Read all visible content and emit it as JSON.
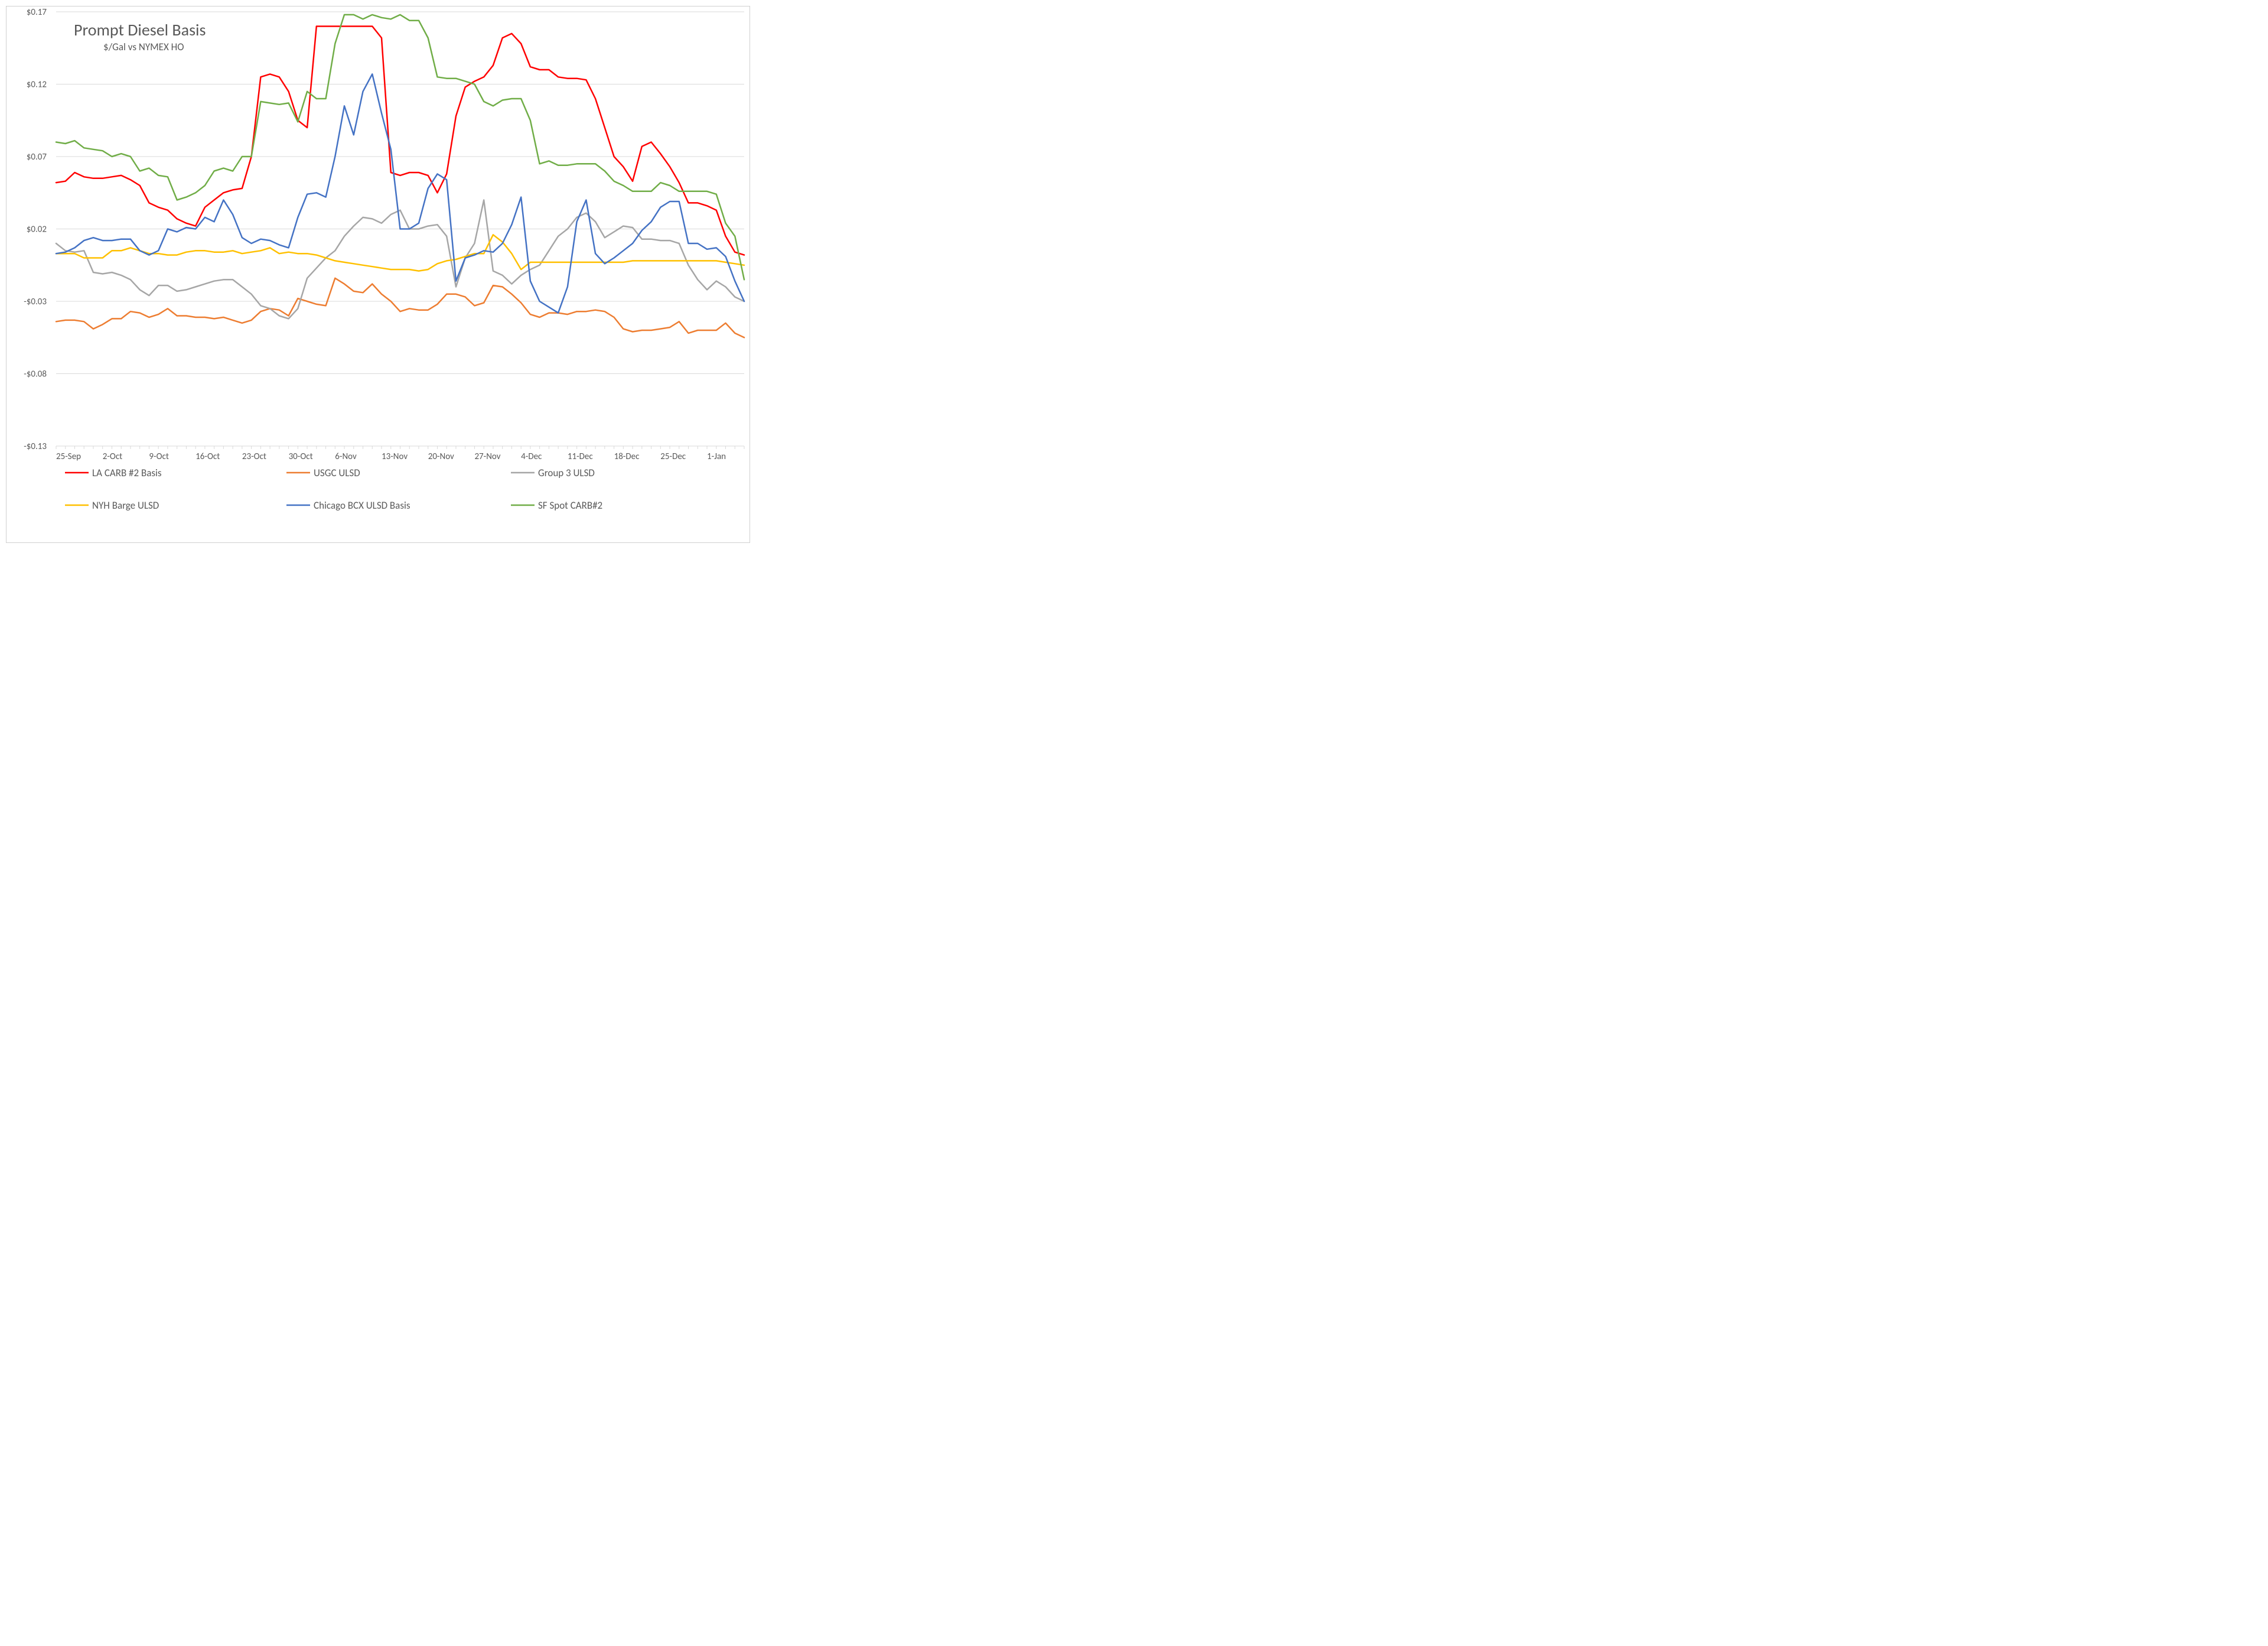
{
  "chart": {
    "type": "line",
    "title": "Prompt Diesel Basis",
    "subtitle": "$/Gal vs NYMEX HO",
    "title_fontsize": 28,
    "subtitle_fontsize": 17,
    "title_color": "#595959",
    "axis_label_fontsize": 15,
    "legend_fontsize": 17,
    "background_color": "#ffffff",
    "gridline_color": "#d9d9d9",
    "border_color": "#d0d0d0",
    "line_width": 2.5,
    "y_axis": {
      "min": -0.13,
      "max": 0.17,
      "ticks": [
        -0.13,
        -0.08,
        -0.03,
        0.02,
        0.07,
        0.12,
        0.17
      ],
      "tick_labels": [
        "-$0.13",
        "-$0.08",
        "-$0.03",
        "$0.02",
        "$0.07",
        "$0.12",
        "$0.17"
      ]
    },
    "x_axis": {
      "tick_indices": [
        0,
        5,
        10,
        15,
        20,
        25,
        30,
        35,
        40,
        45,
        50,
        55,
        60,
        65,
        70
      ],
      "tick_labels": [
        "25-Sep",
        "2-Oct",
        "9-Oct",
        "16-Oct",
        "23-Oct",
        "30-Oct",
        "6-Nov",
        "13-Nov",
        "20-Nov",
        "27-Nov",
        "4-Dec",
        "11-Dec",
        "18-Dec",
        "25-Dec",
        "1-Jan"
      ],
      "n_points": 75
    },
    "series": [
      {
        "name": "LA CARB #2 Basis",
        "color": "#ff0000",
        "values": [
          0.052,
          0.053,
          0.059,
          0.056,
          0.055,
          0.055,
          0.056,
          0.057,
          0.054,
          0.05,
          0.038,
          0.035,
          0.033,
          0.027,
          0.024,
          0.022,
          0.035,
          0.04,
          0.045,
          0.047,
          0.048,
          0.07,
          0.125,
          0.127,
          0.125,
          0.115,
          0.095,
          0.09,
          0.16,
          0.16,
          0.16,
          0.16,
          0.16,
          0.16,
          0.16,
          0.152,
          0.059,
          0.057,
          0.059,
          0.059,
          0.057,
          0.045,
          0.058,
          0.098,
          0.118,
          0.122,
          0.125,
          0.133,
          0.152,
          0.155,
          0.148,
          0.132,
          0.13,
          0.13,
          0.125,
          0.124,
          0.124,
          0.123,
          0.11,
          0.09,
          0.07,
          0.063,
          0.053,
          0.077,
          0.08,
          0.072,
          0.063,
          0.052,
          0.038,
          0.038,
          0.036,
          0.033,
          0.015,
          0.004,
          0.002
        ]
      },
      {
        "name": "USGC ULSD",
        "color": "#ed7d31",
        "values": [
          -0.044,
          -0.043,
          -0.043,
          -0.044,
          -0.049,
          -0.046,
          -0.042,
          -0.042,
          -0.037,
          -0.038,
          -0.041,
          -0.039,
          -0.035,
          -0.04,
          -0.04,
          -0.041,
          -0.041,
          -0.042,
          -0.041,
          -0.043,
          -0.045,
          -0.043,
          -0.037,
          -0.035,
          -0.036,
          -0.04,
          -0.028,
          -0.03,
          -0.032,
          -0.033,
          -0.014,
          -0.018,
          -0.023,
          -0.024,
          -0.018,
          -0.025,
          -0.03,
          -0.037,
          -0.035,
          -0.036,
          -0.036,
          -0.032,
          -0.025,
          -0.025,
          -0.027,
          -0.033,
          -0.031,
          -0.019,
          -0.02,
          -0.025,
          -0.031,
          -0.039,
          -0.041,
          -0.038,
          -0.038,
          -0.039,
          -0.037,
          -0.037,
          -0.036,
          -0.037,
          -0.041,
          -0.049,
          -0.051,
          -0.05,
          -0.05,
          -0.049,
          -0.048,
          -0.044,
          -0.052,
          -0.05,
          -0.05,
          -0.05,
          -0.045,
          -0.052,
          -0.055
        ]
      },
      {
        "name": "Group 3 ULSD",
        "color": "#a6a6a6",
        "values": [
          0.01,
          0.005,
          0.004,
          0.005,
          -0.01,
          -0.011,
          -0.01,
          -0.012,
          -0.015,
          -0.022,
          -0.026,
          -0.019,
          -0.019,
          -0.023,
          -0.022,
          -0.02,
          -0.018,
          -0.016,
          -0.015,
          -0.015,
          -0.02,
          -0.025,
          -0.033,
          -0.035,
          -0.04,
          -0.042,
          -0.035,
          -0.014,
          -0.007,
          0.0,
          0.005,
          0.015,
          0.022,
          0.028,
          0.027,
          0.024,
          0.03,
          0.033,
          0.02,
          0.02,
          0.022,
          0.023,
          0.015,
          -0.02,
          0.0,
          0.01,
          0.04,
          -0.009,
          -0.012,
          -0.018,
          -0.012,
          -0.008,
          -0.005,
          0.005,
          0.015,
          0.02,
          0.028,
          0.031,
          0.025,
          0.014,
          0.018,
          0.022,
          0.021,
          0.013,
          0.013,
          0.012,
          0.012,
          0.01,
          -0.005,
          -0.015,
          -0.022,
          -0.016,
          -0.02,
          -0.027,
          -0.03
        ]
      },
      {
        "name": "NYH Barge ULSD",
        "color": "#ffc000",
        "values": [
          0.003,
          0.003,
          0.003,
          0.0,
          0.0,
          0.0,
          0.005,
          0.005,
          0.007,
          0.005,
          0.003,
          0.003,
          0.002,
          0.002,
          0.004,
          0.005,
          0.005,
          0.004,
          0.004,
          0.005,
          0.003,
          0.004,
          0.005,
          0.007,
          0.003,
          0.004,
          0.003,
          0.003,
          0.002,
          0.0,
          -0.002,
          -0.003,
          -0.004,
          -0.005,
          -0.006,
          -0.007,
          -0.008,
          -0.008,
          -0.008,
          -0.009,
          -0.008,
          -0.004,
          -0.002,
          -0.001,
          0.001,
          0.003,
          0.003,
          0.016,
          0.011,
          0.003,
          -0.008,
          -0.003,
          -0.003,
          -0.003,
          -0.003,
          -0.003,
          -0.003,
          -0.003,
          -0.003,
          -0.003,
          -0.003,
          -0.003,
          -0.002,
          -0.002,
          -0.002,
          -0.002,
          -0.002,
          -0.002,
          -0.002,
          -0.002,
          -0.002,
          -0.002,
          -0.003,
          -0.004,
          -0.005
        ]
      },
      {
        "name": "Chicago BCX ULSD Basis",
        "color": "#4472c4",
        "values": [
          0.003,
          0.004,
          0.007,
          0.012,
          0.014,
          0.012,
          0.012,
          0.013,
          0.013,
          0.005,
          0.002,
          0.005,
          0.02,
          0.018,
          0.021,
          0.02,
          0.028,
          0.025,
          0.04,
          0.03,
          0.014,
          0.01,
          0.013,
          0.012,
          0.009,
          0.007,
          0.028,
          0.044,
          0.045,
          0.042,
          0.07,
          0.105,
          0.085,
          0.115,
          0.127,
          0.1,
          0.075,
          0.02,
          0.02,
          0.024,
          0.048,
          0.058,
          0.054,
          -0.016,
          0.0,
          0.002,
          0.005,
          0.004,
          0.01,
          0.023,
          0.042,
          -0.016,
          -0.03,
          -0.034,
          -0.038,
          -0.02,
          0.025,
          0.04,
          0.003,
          -0.004,
          0.0,
          0.005,
          0.01,
          0.019,
          0.025,
          0.035,
          0.039,
          0.039,
          0.01,
          0.01,
          0.006,
          0.007,
          0.001,
          -0.016,
          -0.03
        ]
      },
      {
        "name": "SF Spot CARB#2",
        "color": "#70ad47",
        "values": [
          0.08,
          0.079,
          0.081,
          0.076,
          0.075,
          0.074,
          0.07,
          0.072,
          0.07,
          0.06,
          0.062,
          0.057,
          0.056,
          0.04,
          0.042,
          0.045,
          0.05,
          0.06,
          0.062,
          0.06,
          0.07,
          0.07,
          0.108,
          0.107,
          0.106,
          0.107,
          0.094,
          0.115,
          0.11,
          0.11,
          0.148,
          0.168,
          0.168,
          0.165,
          0.168,
          0.166,
          0.165,
          0.168,
          0.164,
          0.164,
          0.152,
          0.125,
          0.124,
          0.124,
          0.122,
          0.12,
          0.108,
          0.105,
          0.109,
          0.11,
          0.11,
          0.095,
          0.065,
          0.067,
          0.064,
          0.064,
          0.065,
          0.065,
          0.065,
          0.06,
          0.053,
          0.05,
          0.046,
          0.046,
          0.046,
          0.052,
          0.05,
          0.046,
          0.046,
          0.046,
          0.046,
          0.044,
          0.024,
          0.015,
          -0.015
        ]
      }
    ]
  }
}
